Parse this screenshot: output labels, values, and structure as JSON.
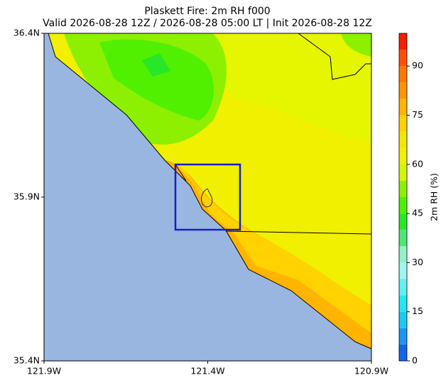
{
  "title": "Plaskett Fire: 2m RH f000",
  "subtitle": "Valid 2026-08-28 12Z / 2026-08-28 05:00 LT | Init 2026-08-28 12Z",
  "map": {
    "ylim": [
      35.4,
      36.4
    ],
    "yticks": [
      {
        "value": 36.4,
        "label": "36.4N"
      },
      {
        "value": 35.9,
        "label": "35.9N"
      },
      {
        "value": 35.4,
        "label": "35.4N"
      }
    ],
    "xlim": [
      -121.9,
      -120.9
    ],
    "xticks": [
      {
        "value": -121.9,
        "label": "121.9W"
      },
      {
        "value": -121.4,
        "label": "121.4W"
      },
      {
        "value": -120.9,
        "label": "120.9W"
      }
    ]
  },
  "colorbar": {
    "label": "2m RH (%)",
    "lim": [
      0,
      100
    ],
    "ticks": [
      0,
      15,
      30,
      45,
      60,
      75,
      90
    ],
    "levels": [
      0,
      5,
      10,
      15,
      20,
      25,
      30,
      35,
      40,
      45,
      50,
      55,
      60,
      65,
      70,
      75,
      80,
      85,
      90,
      95,
      100
    ],
    "colors": [
      "#1464e6",
      "#1e96f0",
      "#1ec8f0",
      "#28e6f0",
      "#64f0f0",
      "#a0f5f0",
      "#96f0c8",
      "#50e678",
      "#28e628",
      "#50f000",
      "#8cf000",
      "#d2f500",
      "#f0f000",
      "#f5e600",
      "#ffd200",
      "#ffb400",
      "#ff9600",
      "#ff7800",
      "#ff5000",
      "#f02000"
    ]
  }
}
